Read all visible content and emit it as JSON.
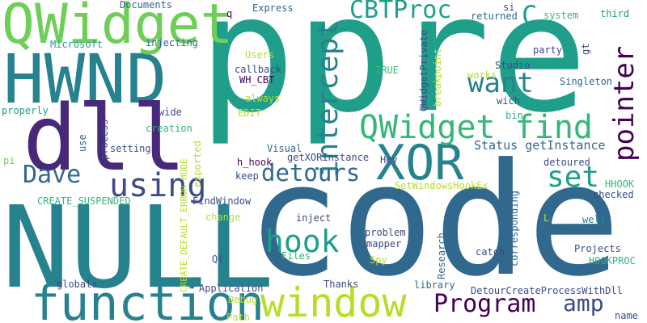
{
  "palette": {
    "dark_purple": "#440154",
    "indigo": "#482878",
    "blue": "#3e4a89",
    "steel": "#31688e",
    "teal": "#26828e",
    "green_teal": "#1f9e89",
    "green": "#35b779",
    "lime": "#6ece58",
    "yellow_green": "#b5de2b",
    "yellow": "#fde725"
  },
  "words": [
    {
      "text": "ppre"
    },
    {
      "text": "code"
    },
    {
      "text": "NULL"
    },
    {
      "text": "HWND"
    },
    {
      "text": "QWidget"
    },
    {
      "text": "dll"
    },
    {
      "text": "function"
    },
    {
      "text": "window"
    },
    {
      "text": "XOR"
    },
    {
      "text": "QWidget find"
    },
    {
      "text": "CBTProc"
    },
    {
      "text": "intercept"
    },
    {
      "text": "want"
    },
    {
      "text": "pointer"
    },
    {
      "text": "hook"
    },
    {
      "text": "detours"
    },
    {
      "text": "using"
    },
    {
      "text": "Dave"
    },
    {
      "text": "set"
    },
    {
      "text": "Program"
    },
    {
      "text": "amp"
    },
    {
      "text": "C"
    },
    {
      "text": "Status getInstance"
    },
    {
      "text": "q"
    },
    {
      "text": "Express"
    },
    {
      "text": "Documents"
    },
    {
      "text": "si"
    },
    {
      "text": "returned"
    },
    {
      "text": "system"
    },
    {
      "text": "third"
    },
    {
      "text": "Microsoft"
    },
    {
      "text": "injecting"
    },
    {
      "text": "Users"
    },
    {
      "text": "callback"
    },
    {
      "text": "WH_CBT"
    },
    {
      "text": "always"
    },
    {
      "text": "EDIT"
    },
    {
      "text": "properly"
    },
    {
      "text": "wide"
    },
    {
      "text": "creation"
    },
    {
      "text": "use"
    },
    {
      "text": "process"
    },
    {
      "text": "setting"
    },
    {
      "text": "pi"
    },
    {
      "text": "CREATE_DEFAULT_ERROR_MODE"
    },
    {
      "text": "exported"
    },
    {
      "text": "h_hook"
    },
    {
      "text": "keep"
    },
    {
      "text": "Visual"
    },
    {
      "text": "getXORInstance"
    },
    {
      "text": "Hey"
    },
    {
      "text": "TRUE"
    },
    {
      "text": "QWidgetPrivate"
    },
    {
      "text": "breakpoint"
    },
    {
      "text": "Studio"
    },
    {
      "text": "works"
    },
    {
      "text": "wich"
    },
    {
      "text": "bin"
    },
    {
      "text": "party"
    },
    {
      "text": "gt"
    },
    {
      "text": "Singleton"
    },
    {
      "text": "detoured"
    },
    {
      "text": "checked"
    },
    {
      "text": "HHOOK"
    },
    {
      "text": "SetWindowsHookEx"
    },
    {
      "text": "CREATE_SUSPENDED"
    },
    {
      "text": "FindWindow"
    },
    {
      "text": "change"
    },
    {
      "text": "inject"
    },
    {
      "text": "corresponding"
    },
    {
      "text": "L"
    },
    {
      "text": "well"
    },
    {
      "text": "problem"
    },
    {
      "text": "mapper"
    },
    {
      "text": "Files"
    },
    {
      "text": "Spy"
    },
    {
      "text": "catch"
    },
    {
      "text": "Research"
    },
    {
      "text": "Projects"
    },
    {
      "text": "HOOKPROC"
    },
    {
      "text": "Qt"
    },
    {
      "text": "globals"
    },
    {
      "text": "Application"
    },
    {
      "text": "Thanks"
    },
    {
      "text": "library"
    },
    {
      "text": "DetourCreateProcessWithDll"
    },
    {
      "text": "Debug"
    },
    {
      "text": "Path"
    },
    {
      "text": "name"
    }
  ]
}
